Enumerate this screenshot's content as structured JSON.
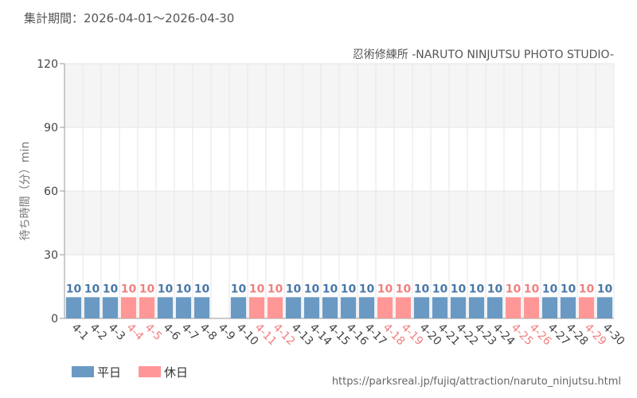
{
  "period_text": "集計期間：2026-04-01～2026-04-30",
  "source_url": "https://parksreal.jp/fujiq/attraction/naruto_ninjutsu.html",
  "colors": {
    "weekday": "#6a9ac3",
    "holiday": "#ff9797",
    "holiday_label": "#f08080",
    "weekday_label": "#4a78a8",
    "axis_text": "#444444",
    "grid": "#e6e6e6",
    "band": "#f5f5f5"
  },
  "chart_data": {
    "type": "bar",
    "title": "忍術修練所 -NARUTO NINJUTSU PHOTO STUDIO-",
    "ylabel": "待ち時間（分）min",
    "xlabel": "",
    "ylim": [
      0,
      120
    ],
    "yticks": [
      0,
      30,
      60,
      90,
      120
    ],
    "grid": true,
    "legend_position": "bottom-left",
    "legend": [
      {
        "key": "weekday",
        "label": "平日"
      },
      {
        "key": "holiday",
        "label": "休日"
      }
    ],
    "categories": [
      "4-1",
      "4-2",
      "4-3",
      "4-4",
      "4-5",
      "4-6",
      "4-7",
      "4-8",
      "4-9",
      "4-10",
      "4-11",
      "4-12",
      "4-13",
      "4-14",
      "4-15",
      "4-16",
      "4-17",
      "4-18",
      "4-19",
      "4-20",
      "4-21",
      "4-22",
      "4-23",
      "4-24",
      "4-25",
      "4-26",
      "4-27",
      "4-28",
      "4-29",
      "4-30"
    ],
    "values": [
      10,
      10,
      10,
      10,
      10,
      10,
      10,
      10,
      null,
      10,
      10,
      10,
      10,
      10,
      10,
      10,
      10,
      10,
      10,
      10,
      10,
      10,
      10,
      10,
      10,
      10,
      10,
      10,
      10,
      10
    ],
    "day_types": [
      "weekday",
      "weekday",
      "weekday",
      "holiday",
      "holiday",
      "weekday",
      "weekday",
      "weekday",
      "weekday",
      "weekday",
      "holiday",
      "holiday",
      "weekday",
      "weekday",
      "weekday",
      "weekday",
      "weekday",
      "holiday",
      "holiday",
      "weekday",
      "weekday",
      "weekday",
      "weekday",
      "weekday",
      "holiday",
      "holiday",
      "weekday",
      "weekday",
      "holiday",
      "weekday"
    ]
  }
}
